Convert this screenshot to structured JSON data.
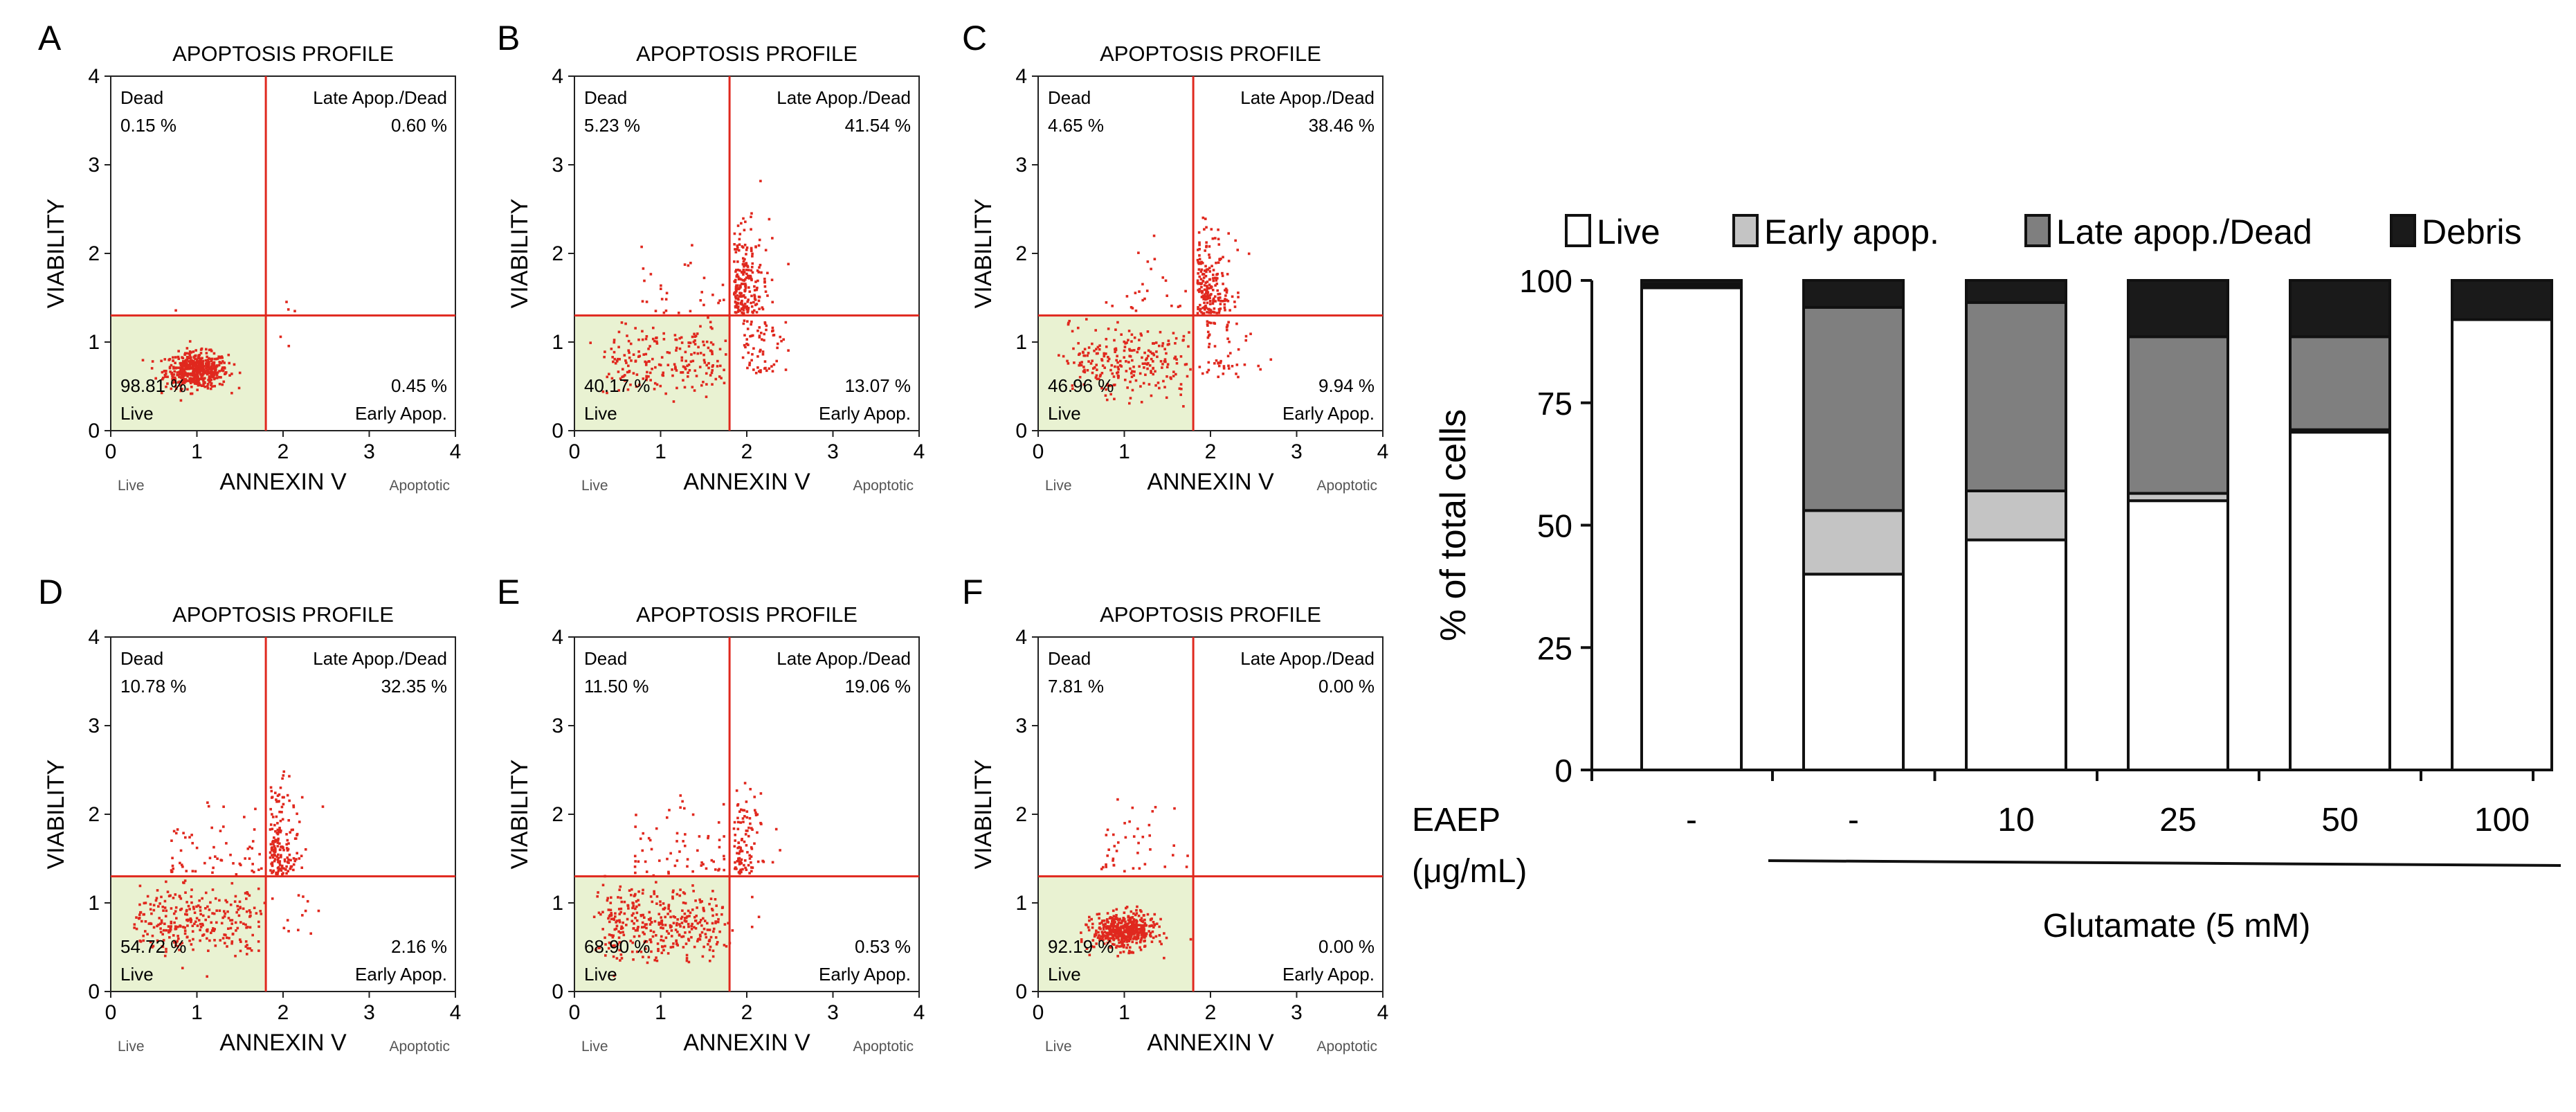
{
  "chart_data": [
    {
      "type": "scatter",
      "panel": "A",
      "title": "APOPTOSIS PROFILE",
      "xlabel": "ANNEXIN V",
      "ylabel": "VIABILITY",
      "x_low_label": "Live",
      "x_high_label": "Apoptotic",
      "xlim": [
        0,
        4
      ],
      "ylim": [
        0,
        4
      ],
      "xticks": [
        "0",
        "1",
        "2",
        "3",
        "4"
      ],
      "yticks": [
        "0",
        "1",
        "2",
        "3",
        "4"
      ],
      "x_gate": 1.8,
      "y_gate": 1.3,
      "quadrants": {
        "dead": {
          "name": "Dead",
          "value": "0.15 %"
        },
        "late": {
          "name": "Late Apop./Dead",
          "value": "0.60 %"
        },
        "live": {
          "name": "Live",
          "value": "98.81 %"
        },
        "early": {
          "name": "Early Apop.",
          "value": "0.45 %"
        }
      }
    },
    {
      "type": "scatter",
      "panel": "B",
      "title": "APOPTOSIS PROFILE",
      "xlabel": "ANNEXIN V",
      "ylabel": "VIABILITY",
      "x_low_label": "Live",
      "x_high_label": "Apoptotic",
      "xlim": [
        0,
        4
      ],
      "ylim": [
        0,
        4
      ],
      "xticks": [
        "0",
        "1",
        "2",
        "3",
        "4"
      ],
      "yticks": [
        "0",
        "1",
        "2",
        "3",
        "4"
      ],
      "x_gate": 1.8,
      "y_gate": 1.3,
      "quadrants": {
        "dead": {
          "name": "Dead",
          "value": "5.23 %"
        },
        "late": {
          "name": "Late Apop./Dead",
          "value": "41.54 %"
        },
        "live": {
          "name": "Live",
          "value": "40.17 %"
        },
        "early": {
          "name": "Early Apop.",
          "value": "13.07 %"
        }
      }
    },
    {
      "type": "scatter",
      "panel": "C",
      "title": "APOPTOSIS PROFILE",
      "xlabel": "ANNEXIN V",
      "ylabel": "VIABILITY",
      "x_low_label": "Live",
      "x_high_label": "Apoptotic",
      "xlim": [
        0,
        4
      ],
      "ylim": [
        0,
        4
      ],
      "xticks": [
        "0",
        "1",
        "2",
        "3",
        "4"
      ],
      "yticks": [
        "0",
        "1",
        "2",
        "3",
        "4"
      ],
      "x_gate": 1.8,
      "y_gate": 1.3,
      "quadrants": {
        "dead": {
          "name": "Dead",
          "value": "4.65 %"
        },
        "late": {
          "name": "Late Apop./Dead",
          "value": "38.46 %"
        },
        "live": {
          "name": "Live",
          "value": "46.96 %"
        },
        "early": {
          "name": "Early Apop.",
          "value": "9.94 %"
        }
      }
    },
    {
      "type": "scatter",
      "panel": "D",
      "title": "APOPTOSIS PROFILE",
      "xlabel": "ANNEXIN V",
      "ylabel": "VIABILITY",
      "x_low_label": "Live",
      "x_high_label": "Apoptotic",
      "xlim": [
        0,
        4
      ],
      "ylim": [
        0,
        4
      ],
      "xticks": [
        "0",
        "1",
        "2",
        "3",
        "4"
      ],
      "yticks": [
        "0",
        "1",
        "2",
        "3",
        "4"
      ],
      "x_gate": 1.8,
      "y_gate": 1.3,
      "quadrants": {
        "dead": {
          "name": "Dead",
          "value": "10.78 %"
        },
        "late": {
          "name": "Late Apop./Dead",
          "value": "32.35 %"
        },
        "live": {
          "name": "Live",
          "value": "54.72 %"
        },
        "early": {
          "name": "Early Apop.",
          "value": "2.16 %"
        }
      }
    },
    {
      "type": "scatter",
      "panel": "E",
      "title": "APOPTOSIS PROFILE",
      "xlabel": "ANNEXIN V",
      "ylabel": "VIABILITY",
      "x_low_label": "Live",
      "x_high_label": "Apoptotic",
      "xlim": [
        0,
        4
      ],
      "ylim": [
        0,
        4
      ],
      "xticks": [
        "0",
        "1",
        "2",
        "3",
        "4"
      ],
      "yticks": [
        "0",
        "1",
        "2",
        "3",
        "4"
      ],
      "x_gate": 1.8,
      "y_gate": 1.3,
      "quadrants": {
        "dead": {
          "name": "Dead",
          "value": "11.50 %"
        },
        "late": {
          "name": "Late Apop./Dead",
          "value": "19.06 %"
        },
        "live": {
          "name": "Live",
          "value": "68.90 %"
        },
        "early": {
          "name": "Early Apop.",
          "value": "0.53 %"
        }
      }
    },
    {
      "type": "scatter",
      "panel": "F",
      "title": "APOPTOSIS PROFILE",
      "xlabel": "ANNEXIN V",
      "ylabel": "VIABILITY",
      "x_low_label": "Live",
      "x_high_label": "Apoptotic",
      "xlim": [
        0,
        4
      ],
      "ylim": [
        0,
        4
      ],
      "xticks": [
        "0",
        "1",
        "2",
        "3",
        "4"
      ],
      "yticks": [
        "0",
        "1",
        "2",
        "3",
        "4"
      ],
      "x_gate": 1.8,
      "y_gate": 1.3,
      "quadrants": {
        "dead": {
          "name": "Dead",
          "value": "7.81 %"
        },
        "late": {
          "name": "Late Apop./Dead",
          "value": "0.00 %"
        },
        "live": {
          "name": "Live",
          "value": "92.19 %"
        },
        "early": {
          "name": "Early Apop.",
          "value": "0.00 %"
        }
      }
    },
    {
      "type": "bar",
      "stacked": true,
      "ylabel": "% of total cells",
      "ylim": [
        0,
        100
      ],
      "yticks": [
        "0",
        "25",
        "50",
        "75",
        "100"
      ],
      "legend_position": "top",
      "legend": [
        {
          "name": "Live",
          "color": "#ffffff"
        },
        {
          "name": "Early apop.",
          "color": "#c4c4c4"
        },
        {
          "name": "Late apop./Dead",
          "color": "#7f7f7f"
        },
        {
          "name": "Debris",
          "color": "#1a1a1a"
        }
      ],
      "row_label_line1": "EAEP",
      "row_label_line2": "(μg/mL)",
      "categories": [
        "-",
        "-",
        "10",
        "25",
        "50",
        "100"
      ],
      "group_label": "Glutamate (5 mM)",
      "series": [
        {
          "name": "Live",
          "values": [
            98.5,
            40,
            47,
            55,
            69,
            92
          ]
        },
        {
          "name": "Early apop.",
          "values": [
            0.3,
            13,
            10,
            1.5,
            0.5,
            0
          ]
        },
        {
          "name": "Late apop./Dead",
          "values": [
            0.5,
            41.5,
            38.5,
            32,
            19,
            0
          ]
        },
        {
          "name": "Debris",
          "values": [
            0.7,
            5.5,
            4.5,
            11.5,
            11.5,
            8
          ]
        }
      ]
    }
  ]
}
